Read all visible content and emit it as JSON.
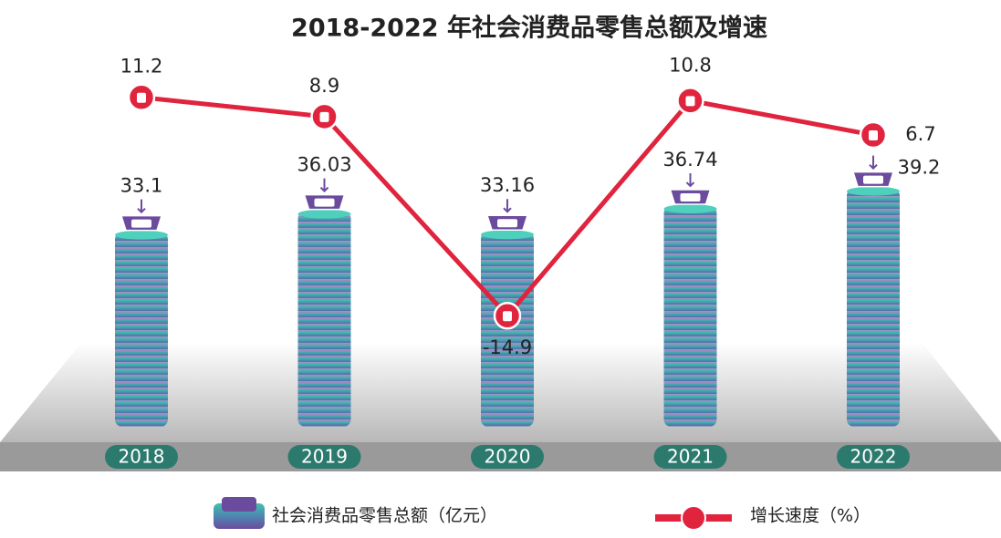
{
  "chart_data": {
    "type": "bar",
    "title": "2018-2022 年社会消费品零售总额及增速",
    "categories": [
      "2018",
      "2019",
      "2020",
      "2021",
      "2022"
    ],
    "series": [
      {
        "name": "社会消费品零售总额（亿元）",
        "type": "bar",
        "color": "#3fbfad",
        "values": [
          33.1,
          36.03,
          33.16,
          36.74,
          39.2
        ]
      },
      {
        "name": "增长速度（%）",
        "type": "line",
        "axis": "y2",
        "color": "#e0243e",
        "values": [
          11.2,
          8.9,
          -14.9,
          10.8,
          6.7
        ]
      }
    ],
    "ylim": [
      6,
      45
    ],
    "y2lim": [
      -20,
      20
    ]
  }
}
